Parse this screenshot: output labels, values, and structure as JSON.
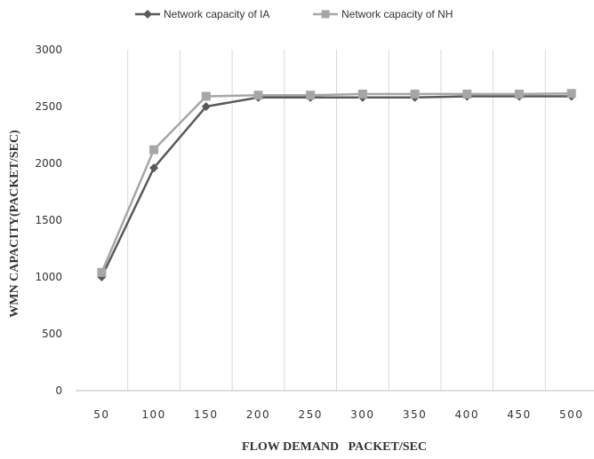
{
  "chart_data": {
    "type": "line",
    "xlabel": "FLOW DEMAND   PACKET/SEC",
    "ylabel": "WMN CAPACITY(PACKET/SEC)",
    "categories": [
      "50",
      "100",
      "150",
      "200",
      "250",
      "300",
      "350",
      "400",
      "450",
      "500"
    ],
    "ylim": [
      0,
      3000
    ],
    "yticks": [
      "0",
      "500",
      "1000",
      "1500",
      "2000",
      "2500",
      "3000"
    ],
    "grid": "vertical",
    "legend_position": "top",
    "series": [
      {
        "name": "Network capacity of IA",
        "color": "#595959",
        "marker": "diamond",
        "values": [
          1000,
          1960,
          2500,
          2580,
          2580,
          2580,
          2580,
          2590,
          2590,
          2590
        ]
      },
      {
        "name": "Network capacity of NH",
        "color": "#a6a6a6",
        "marker": "square",
        "values": [
          1040,
          2120,
          2590,
          2600,
          2600,
          2610,
          2610,
          2610,
          2610,
          2615
        ]
      }
    ]
  }
}
